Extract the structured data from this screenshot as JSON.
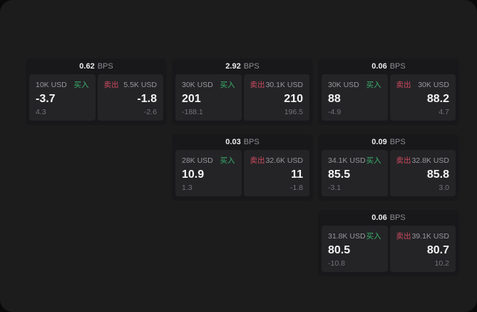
{
  "labels": {
    "bps_unit": "BPS",
    "buy": "买入",
    "sell": "卖出"
  },
  "colors": {
    "page_background": "#1c1c1d",
    "card_background": "#18181a",
    "panel_background": "#242427",
    "buy_green": "#3aaf6b",
    "sell_red": "#cc4a5e",
    "value_white": "#f4f4f6",
    "label_gray": "#98989c",
    "delta_gray": "#737378"
  },
  "cards": [
    {
      "bps": "0.62",
      "buy": {
        "notional": "10K USD",
        "value": "-3.7",
        "delta": "4.3"
      },
      "sell": {
        "notional": "5.5K USD",
        "value": "-1.8",
        "delta": "-2.6"
      }
    },
    {
      "bps": "2.92",
      "buy": {
        "notional": "30K USD",
        "value": "201",
        "delta": "-188.1"
      },
      "sell": {
        "notional": "30.1K USD",
        "value": "210",
        "delta": "196.5"
      }
    },
    {
      "bps": "0.06",
      "buy": {
        "notional": "30K USD",
        "value": "88",
        "delta": "-4.9"
      },
      "sell": {
        "notional": "30K USD",
        "value": "88.2",
        "delta": "4.7"
      }
    },
    {
      "bps": "0.03",
      "buy": {
        "notional": "28K USD",
        "value": "10.9",
        "delta": "1.3"
      },
      "sell": {
        "notional": "32.6K USD",
        "value": "11",
        "delta": "-1.8"
      }
    },
    {
      "bps": "0.09",
      "buy": {
        "notional": "34.1K USD",
        "value": "85.5",
        "delta": "-3.1"
      },
      "sell": {
        "notional": "32.8K USD",
        "value": "85.8",
        "delta": "3.0"
      }
    },
    {
      "bps": "0.06",
      "buy": {
        "notional": "31.8K USD",
        "value": "80.5",
        "delta": "-10.8"
      },
      "sell": {
        "notional": "39.1K USD",
        "value": "80.7",
        "delta": "10.2"
      }
    }
  ]
}
